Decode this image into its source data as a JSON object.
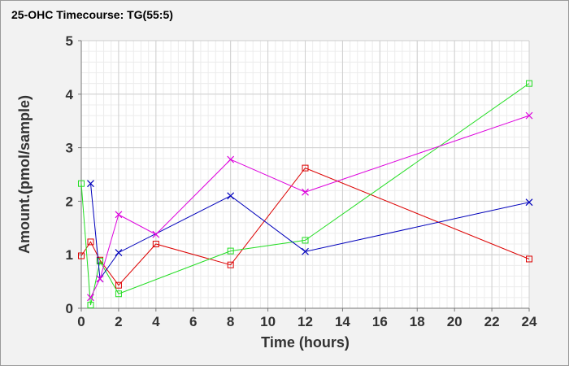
{
  "chart_data": {
    "type": "line",
    "title": "25-OHC Timecourse: TG(55:5)",
    "xlabel": "Time (hours)",
    "ylabel": "Amount.(pmol/sample)",
    "xlim": [
      0,
      24
    ],
    "ylim": [
      0,
      5
    ],
    "xticks": [
      0,
      2,
      4,
      6,
      8,
      10,
      12,
      14,
      16,
      18,
      20,
      22,
      24
    ],
    "yticks": [
      0,
      1,
      2,
      3,
      4,
      5
    ],
    "grid": true,
    "legend": "none",
    "series": [
      {
        "color": "#dd0000",
        "marker": "square",
        "x": [
          0,
          0.5,
          1,
          2,
          4,
          8,
          12,
          24
        ],
        "y": [
          0.98,
          1.24,
          0.9,
          0.43,
          1.2,
          0.81,
          2.62,
          0.92
        ]
      },
      {
        "color": "#22dd22",
        "marker": "square",
        "x": [
          0,
          0.5,
          1,
          2,
          8,
          12,
          24
        ],
        "y": [
          2.33,
          0.06,
          0.88,
          0.27,
          1.07,
          1.27,
          4.2
        ]
      },
      {
        "color": "#0000bb",
        "marker": "x",
        "x": [
          0.5,
          1,
          2,
          8,
          12,
          24
        ],
        "y": [
          2.33,
          0.55,
          1.04,
          2.1,
          1.06,
          1.98
        ]
      },
      {
        "color": "#dd00dd",
        "marker": "x",
        "x": [
          0.5,
          1,
          2,
          4,
          8,
          12,
          24
        ],
        "y": [
          0.2,
          0.55,
          1.75,
          1.38,
          2.78,
          2.17,
          3.6
        ]
      }
    ]
  }
}
